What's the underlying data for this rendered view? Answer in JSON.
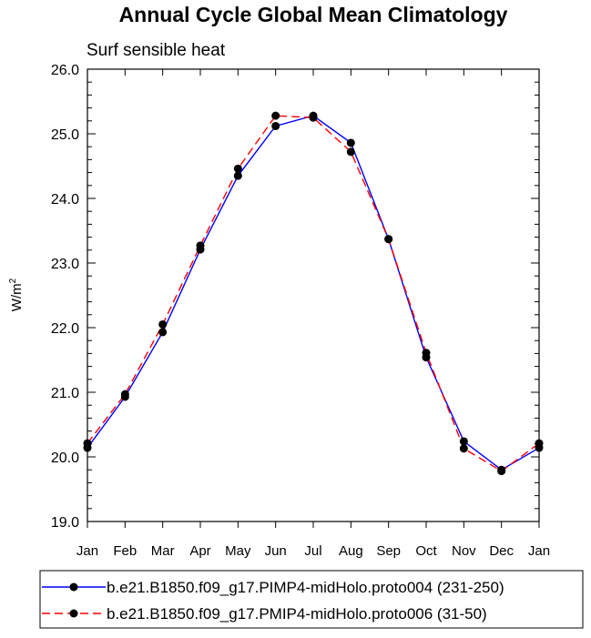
{
  "chart_data": {
    "type": "line",
    "title": "Annual Cycle Global Mean Climatology",
    "subtitle": "Surf sensible heat",
    "ylabel": "W/m",
    "ylabel_superscript": "2",
    "xlabel": "",
    "ylim": [
      19.0,
      26.0
    ],
    "yticks": [
      "19.0",
      "20.0",
      "21.0",
      "22.0",
      "23.0",
      "24.0",
      "25.0",
      "26.0"
    ],
    "categories": [
      "Jan",
      "Feb",
      "Mar",
      "Apr",
      "May",
      "Jun",
      "Jul",
      "Aug",
      "Sep",
      "Oct",
      "Nov",
      "Dec",
      "Jan"
    ],
    "series": [
      {
        "name": "b.e21.B1850.f09_g17.PIMP4-midHolo.proto004 (231-250)",
        "color": "#0000ff",
        "dash": "solid",
        "values": [
          20.14,
          20.93,
          21.93,
          23.21,
          24.35,
          25.12,
          25.28,
          24.86,
          23.37,
          21.54,
          20.24,
          19.8,
          20.14
        ]
      },
      {
        "name": "b.e21.B1850.f09_g17.PMIP4-midHolo.proto006 (31-50)",
        "color": "#ff0000",
        "dash": "dashed",
        "values": [
          20.21,
          20.97,
          22.05,
          23.27,
          24.46,
          25.28,
          25.25,
          24.72,
          23.37,
          21.61,
          20.13,
          19.78,
          20.21
        ]
      }
    ],
    "grid": false,
    "legend_position": "bottom"
  }
}
